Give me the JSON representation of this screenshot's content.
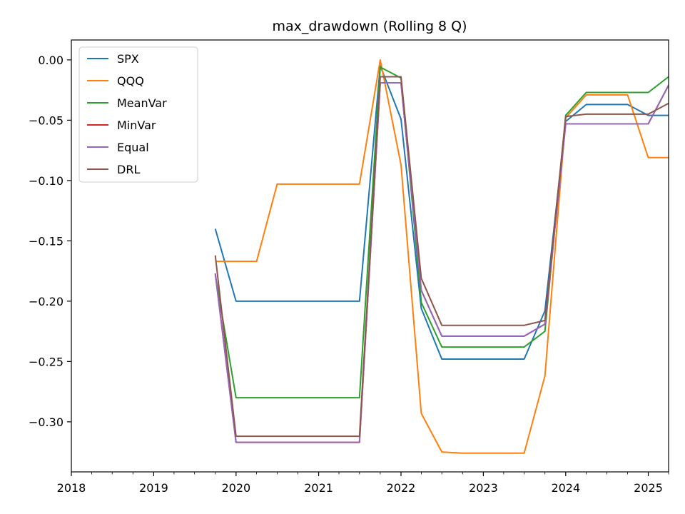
{
  "chart_data": {
    "type": "line",
    "title": "max_drawdown (Rolling 8 Q)",
    "xlabel": "",
    "ylabel": "",
    "xlim": [
      "2018-01-01",
      "2025-04-01"
    ],
    "ylim": [
      -0.3415,
      0.0165
    ],
    "x_ticks": [
      "2018",
      "2019",
      "2020",
      "2021",
      "2022",
      "2023",
      "2024",
      "2025"
    ],
    "y_ticks": [
      "0.00",
      "−0.05",
      "−0.10",
      "−0.15",
      "−0.20",
      "−0.25",
      "−0.30"
    ],
    "y_tick_values": [
      0.0,
      -0.05,
      -0.1,
      -0.15,
      -0.2,
      -0.25,
      -0.3
    ],
    "grid": false,
    "legend_position": "upper-left",
    "x": [
      "2019-10-01",
      "2020-01-01",
      "2020-04-01",
      "2020-07-01",
      "2020-10-01",
      "2021-01-01",
      "2021-04-01",
      "2021-07-01",
      "2021-10-01",
      "2022-01-01",
      "2022-04-01",
      "2022-07-01",
      "2022-10-01",
      "2023-01-01",
      "2023-04-01",
      "2023-07-01",
      "2023-10-01",
      "2024-01-01",
      "2024-04-01",
      "2024-07-01",
      "2024-10-01",
      "2025-01-01",
      "2025-04-01"
    ],
    "series": [
      {
        "name": "SPX",
        "color": "#1f77b4",
        "values": [
          -0.14,
          -0.2,
          -0.2,
          -0.2,
          -0.2,
          -0.2,
          -0.2,
          -0.2,
          -0.005,
          -0.049,
          -0.206,
          -0.248,
          -0.248,
          -0.248,
          -0.248,
          -0.248,
          -0.208,
          -0.051,
          -0.037,
          -0.037,
          -0.037,
          -0.046,
          -0.046
        ]
      },
      {
        "name": "QQQ",
        "color": "#ff7f0e",
        "values": [
          -0.167,
          -0.167,
          -0.167,
          -0.103,
          -0.103,
          -0.103,
          -0.103,
          -0.103,
          0.0,
          -0.087,
          -0.293,
          -0.325,
          -0.326,
          -0.326,
          -0.326,
          -0.326,
          -0.262,
          -0.048,
          -0.029,
          -0.029,
          -0.029,
          -0.081,
          -0.081
        ]
      },
      {
        "name": "MeanVar",
        "color": "#2ca02c",
        "values": [
          -0.178,
          -0.28,
          -0.28,
          -0.28,
          -0.28,
          -0.28,
          -0.28,
          -0.28,
          -0.006,
          -0.015,
          -0.201,
          -0.238,
          -0.238,
          -0.238,
          -0.238,
          -0.238,
          -0.225,
          -0.046,
          -0.027,
          -0.027,
          -0.027,
          -0.027,
          -0.014
        ]
      },
      {
        "name": "MinVar",
        "color": "#d62728",
        "values": [
          -0.177,
          -0.317,
          -0.317,
          -0.317,
          -0.317,
          -0.317,
          -0.317,
          -0.317,
          -0.019,
          -0.019,
          -0.191,
          -0.229,
          -0.229,
          -0.229,
          -0.229,
          -0.229,
          -0.219,
          -0.053,
          -0.053,
          -0.053,
          -0.053,
          -0.053,
          -0.021
        ]
      },
      {
        "name": "Equal",
        "color": "#9467bd",
        "values": [
          -0.177,
          -0.317,
          -0.317,
          -0.317,
          -0.317,
          -0.317,
          -0.317,
          -0.317,
          -0.019,
          -0.019,
          -0.191,
          -0.229,
          -0.229,
          -0.229,
          -0.229,
          -0.229,
          -0.219,
          -0.053,
          -0.053,
          -0.053,
          -0.053,
          -0.053,
          -0.021
        ]
      },
      {
        "name": "DRL",
        "color": "#8c564b",
        "values": [
          -0.162,
          -0.312,
          -0.312,
          -0.312,
          -0.312,
          -0.312,
          -0.312,
          -0.312,
          -0.014,
          -0.014,
          -0.181,
          -0.22,
          -0.22,
          -0.22,
          -0.22,
          -0.22,
          -0.216,
          -0.047,
          -0.045,
          -0.045,
          -0.045,
          -0.045,
          -0.036
        ]
      }
    ]
  }
}
